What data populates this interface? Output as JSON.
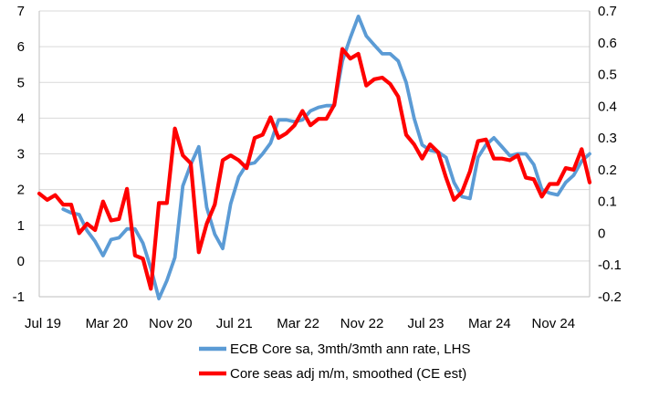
{
  "chart_data": {
    "type": "line",
    "title": "",
    "x_tick_labels": [
      "Jul 19",
      "Mar 20",
      "Nov 20",
      "Jul 21",
      "Mar 22",
      "Nov 22",
      "Jul 23",
      "Mar 24",
      "Nov 24"
    ],
    "y_left": {
      "ylim": [
        -1,
        7
      ],
      "ticks": [
        -1,
        0,
        1,
        2,
        3,
        4,
        5,
        6,
        7
      ]
    },
    "y_right": {
      "ylim": [
        -0.2,
        0.7
      ],
      "ticks": [
        "-0.2",
        "-0.1",
        "0",
        "0.1",
        "0.2",
        "0.3",
        "0.4",
        "0.5",
        "0.6",
        "0.7"
      ]
    },
    "grid": "horizontal",
    "legend_position": "bottom",
    "series": [
      {
        "name": "ECB Core sa, 3mth/3mth ann rate, LHS",
        "axis": "left",
        "color": "#5B9BD5",
        "x": [
          "2019-10",
          "2019-11",
          "2019-12",
          "2020-01",
          "2020-02",
          "2020-03",
          "2020-04",
          "2020-05",
          "2020-06",
          "2020-07",
          "2020-08",
          "2020-09",
          "2020-10",
          "2020-11",
          "2020-12",
          "2021-01",
          "2021-02",
          "2021-03",
          "2021-04",
          "2021-05",
          "2021-06",
          "2021-07",
          "2021-08",
          "2021-09",
          "2021-10",
          "2021-11",
          "2021-12",
          "2022-01",
          "2022-02",
          "2022-03",
          "2022-04",
          "2022-05",
          "2022-06",
          "2022-07",
          "2022-08",
          "2022-09",
          "2022-10",
          "2022-11",
          "2022-12",
          "2023-01",
          "2023-02",
          "2023-03",
          "2023-04",
          "2023-05",
          "2023-06",
          "2023-07",
          "2023-08",
          "2023-09",
          "2023-10",
          "2023-11",
          "2023-12",
          "2024-01",
          "2024-02",
          "2024-03",
          "2024-04",
          "2024-05",
          "2024-06",
          "2024-07",
          "2024-08",
          "2024-09",
          "2024-10",
          "2024-11",
          "2024-12",
          "2025-01",
          "2025-02",
          "2025-03",
          "2025-04"
        ],
        "values": [
          1.45,
          1.35,
          1.3,
          0.85,
          0.55,
          0.15,
          0.6,
          0.65,
          0.9,
          0.9,
          0.5,
          -0.2,
          -1.05,
          -0.55,
          0.1,
          2.1,
          2.7,
          3.2,
          1.5,
          0.75,
          0.35,
          1.6,
          2.35,
          2.7,
          2.75,
          3.0,
          3.3,
          3.95,
          3.95,
          3.9,
          3.95,
          4.2,
          4.3,
          4.35,
          4.35,
          5.6,
          6.25,
          6.85,
          6.3,
          6.05,
          5.8,
          5.8,
          5.6,
          5.0,
          4.0,
          3.25,
          3.1,
          3.05,
          2.9,
          2.2,
          1.8,
          1.75,
          2.9,
          3.25,
          3.45,
          3.2,
          2.95,
          3.0,
          3.0,
          2.7,
          2.0,
          1.9,
          1.85,
          2.2,
          2.4,
          2.8,
          3.0
        ]
      },
      {
        "name": "Core seas adj m/m, smoothed (CE est)",
        "axis": "right",
        "color": "#FF0000",
        "x": [
          "2019-07",
          "2019-08",
          "2019-09",
          "2019-10",
          "2019-11",
          "2019-12",
          "2020-01",
          "2020-02",
          "2020-03",
          "2020-04",
          "2020-05",
          "2020-06",
          "2020-07",
          "2020-08",
          "2020-09",
          "2020-10",
          "2020-11",
          "2020-12",
          "2021-01",
          "2021-02",
          "2021-03",
          "2021-04",
          "2021-05",
          "2021-06",
          "2021-07",
          "2021-08",
          "2021-09",
          "2021-10",
          "2021-11",
          "2021-12",
          "2022-01",
          "2022-02",
          "2022-03",
          "2022-04",
          "2022-05",
          "2022-06",
          "2022-07",
          "2022-08",
          "2022-09",
          "2022-10",
          "2022-11",
          "2022-12",
          "2023-01",
          "2023-02",
          "2023-03",
          "2023-04",
          "2023-05",
          "2023-06",
          "2023-07",
          "2023-08",
          "2023-09",
          "2023-10",
          "2023-11",
          "2023-12",
          "2024-01",
          "2024-02",
          "2024-03",
          "2024-04",
          "2024-05",
          "2024-06",
          "2024-07",
          "2024-08",
          "2024-09",
          "2024-10",
          "2024-11",
          "2024-12",
          "2025-01",
          "2025-02",
          "2025-03",
          "2025-04"
        ],
        "values": [
          0.125,
          0.105,
          0.12,
          0.09,
          0.09,
          0.0,
          0.03,
          0.01,
          0.1,
          0.04,
          0.045,
          0.14,
          -0.07,
          -0.08,
          -0.175,
          0.095,
          0.095,
          0.33,
          0.245,
          0.22,
          -0.06,
          0.03,
          0.09,
          0.23,
          0.245,
          0.23,
          0.205,
          0.3,
          0.31,
          0.365,
          0.3,
          0.315,
          0.34,
          0.385,
          0.34,
          0.36,
          0.36,
          0.405,
          0.58,
          0.55,
          0.565,
          0.465,
          0.485,
          0.49,
          0.47,
          0.43,
          0.31,
          0.28,
          0.235,
          0.28,
          0.255,
          0.175,
          0.105,
          0.13,
          0.195,
          0.29,
          0.295,
          0.235,
          0.235,
          0.23,
          0.245,
          0.175,
          0.17,
          0.115,
          0.155,
          0.155,
          0.205,
          0.2,
          0.265,
          0.16
        ]
      }
    ]
  }
}
